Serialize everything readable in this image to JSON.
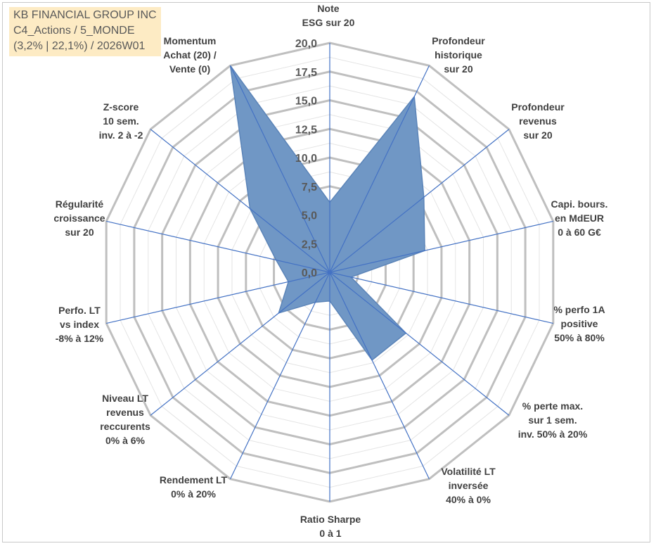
{
  "header": {
    "lines": [
      "KB FINANCIAL GROUP INC",
      "C4_Actions / 5_MONDE",
      "(3,2% | 22,1%) / 2026W01"
    ]
  },
  "chart_data": {
    "type": "radar",
    "rlim": [
      0,
      20
    ],
    "ticks": [
      "0,0",
      "2,5",
      "5,0",
      "7,5",
      "10,0",
      "12,5",
      "15,0",
      "17,5",
      "20,0"
    ],
    "grid": true,
    "categories": [
      [
        "Note",
        "ESG sur 20"
      ],
      [
        "Profondeur",
        "historique",
        "sur 20"
      ],
      [
        "Profondeur",
        "revenus",
        "sur 20"
      ],
      [
        "Capi. bours.",
        "en MdEUR",
        "0 à 60 G€"
      ],
      [
        "% perfo 1A",
        "positive",
        "50% à 80%"
      ],
      [
        "% perte max.",
        "sur 1 sem.",
        "inv. 50% à 20%"
      ],
      [
        "Volatilité LT",
        "inversée",
        "40% à 0%"
      ],
      [
        "Ratio Sharpe",
        "0 à 1"
      ],
      [
        "Rendement LT",
        "0% à 20%"
      ],
      [
        "Niveau LT",
        "revenus",
        "reccurents",
        "0% à 6%"
      ],
      [
        "Perfo. LT",
        "vs index",
        "-8% à 12%"
      ],
      [
        "Régularité",
        "croissance",
        "sur 20"
      ],
      [
        "Z-score",
        "10 sem.",
        "inv. 2 à -2"
      ],
      [
        "Momentum",
        "Achat (20) /",
        "Vente (0)"
      ]
    ],
    "values": [
      6.1,
      17.0,
      10.5,
      8.5,
      1.9,
      8.5,
      8.5,
      2.5,
      2.9,
      5.7,
      3.7,
      4.8,
      8.9,
      20.0
    ],
    "colors": {
      "fill": "#7097c5",
      "stroke": "#5b84b8",
      "spoke": "#4472c4",
      "grid_major": "#bfbfbf",
      "grid_minor": "#e4e4e4"
    }
  }
}
